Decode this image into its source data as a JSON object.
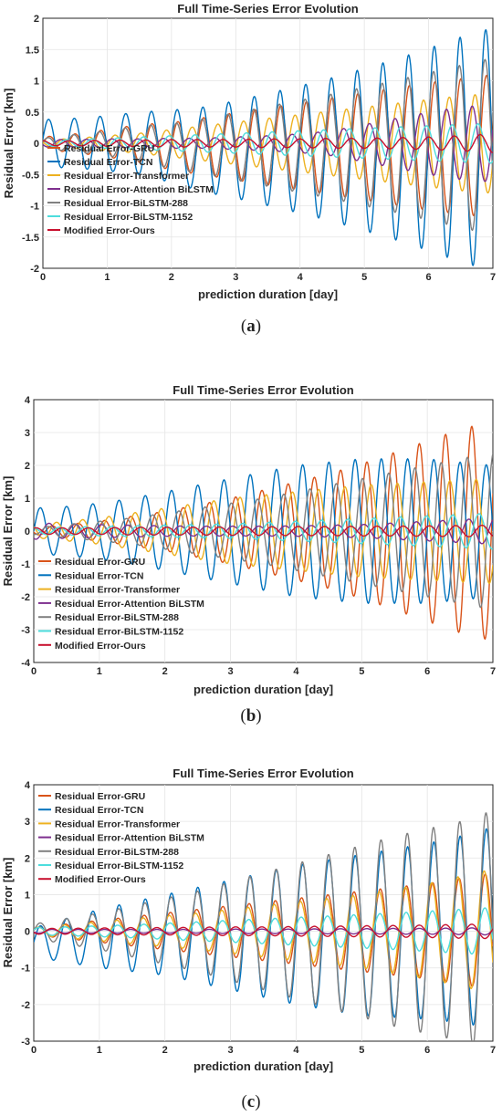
{
  "panels": [
    {
      "caption_open": "(",
      "caption_letter": "a",
      "caption_close": ")"
    },
    {
      "caption_open": "(",
      "caption_letter": "b",
      "caption_close": ")"
    },
    {
      "caption_open": "(",
      "caption_letter": "c",
      "caption_close": ")"
    }
  ],
  "colors": {
    "GRU": "#D95319",
    "TCN": "#0072BD",
    "Transformer": "#EDB120",
    "AttentionBiLSTM": "#7E2F8E",
    "BiLSTM288": "#808080",
    "BiLSTM1152": "#4DDDDD",
    "Ours": "#C8102E"
  },
  "chart_data": [
    {
      "type": "line",
      "title": "Full Time-Series Error Evolution",
      "xlabel": "prediction duration [day]",
      "ylabel": "Residual Error [km]",
      "xlim": [
        0,
        7
      ],
      "ylim": [
        -2,
        2
      ],
      "xticks": [
        0,
        1,
        2,
        3,
        4,
        5,
        6,
        7
      ],
      "yticks": [
        -2,
        -1.5,
        -1,
        -0.5,
        0,
        0.5,
        1,
        1.5,
        2
      ],
      "grid": true,
      "legend_position": "bottom-left",
      "oscillation_period_day": 0.4,
      "x": [
        0,
        0.5,
        1,
        1.5,
        2,
        2.5,
        3,
        3.5,
        4,
        4.5,
        5,
        5.5,
        6,
        6.5,
        7
      ],
      "series": [
        {
          "name": "Residual Error-GRU",
          "color": "#D95319",
          "phase_deg": 0,
          "amplitude": [
            0.1,
            0.15,
            0.22,
            0.3,
            0.38,
            0.46,
            0.54,
            0.62,
            0.7,
            0.78,
            0.86,
            0.94,
            1.02,
            1.08,
            1.15
          ],
          "offset": [
            0,
            0,
            0,
            0,
            -0.05,
            -0.05,
            -0.05,
            -0.05,
            -0.05,
            -0.05,
            -0.05,
            -0.05,
            -0.05,
            -0.05,
            -0.05
          ]
        },
        {
          "name": "Residual Error-TCN",
          "color": "#0072BD",
          "phase_deg": 10,
          "amplitude": [
            0.38,
            0.4,
            0.44,
            0.5,
            0.58,
            0.68,
            0.78,
            0.9,
            1.02,
            1.15,
            1.3,
            1.45,
            1.62,
            1.8,
            1.95
          ],
          "offset": [
            0,
            0,
            0,
            0,
            -0.05,
            -0.1,
            -0.1,
            -0.1,
            -0.1,
            -0.1,
            -0.1,
            -0.1,
            -0.1,
            -0.1,
            -0.1
          ]
        },
        {
          "name": "Residual Error-Transformer",
          "color": "#EDB120",
          "phase_deg": 160,
          "amplitude": [
            0.05,
            0.08,
            0.12,
            0.16,
            0.22,
            0.28,
            0.34,
            0.4,
            0.46,
            0.52,
            0.58,
            0.64,
            0.7,
            0.76,
            0.8
          ],
          "offset": [
            0,
            0,
            0,
            0,
            0,
            0,
            0,
            0,
            0,
            0,
            0,
            0,
            0,
            0,
            0
          ]
        },
        {
          "name": "Residual Error-Attention BiLSTM",
          "color": "#7E2F8E",
          "phase_deg": 200,
          "amplitude": [
            0.06,
            0.06,
            0.07,
            0.07,
            0.08,
            0.08,
            0.1,
            0.12,
            0.15,
            0.2,
            0.3,
            0.4,
            0.5,
            0.58,
            0.62
          ],
          "offset": [
            0,
            0,
            0,
            0,
            0,
            0,
            0,
            0,
            0,
            0,
            0,
            0,
            0,
            0,
            0
          ]
        },
        {
          "name": "Residual Error-BiLSTM-288",
          "color": "#808080",
          "phase_deg": 20,
          "amplitude": [
            0.08,
            0.14,
            0.2,
            0.28,
            0.36,
            0.44,
            0.54,
            0.64,
            0.74,
            0.84,
            0.95,
            1.06,
            1.18,
            1.3,
            1.42
          ],
          "offset": [
            0,
            0,
            0,
            0,
            -0.05,
            -0.05,
            -0.05,
            -0.05,
            -0.05,
            -0.05,
            -0.05,
            -0.05,
            -0.05,
            -0.05,
            -0.05
          ]
        },
        {
          "name": "Residual Error-BiLSTM-1152",
          "color": "#4DDDDD",
          "phase_deg": 120,
          "amplitude": [
            0.05,
            0.06,
            0.08,
            0.1,
            0.12,
            0.14,
            0.16,
            0.18,
            0.2,
            0.22,
            0.24,
            0.26,
            0.28,
            0.3,
            0.32
          ],
          "offset": [
            0,
            0,
            0,
            0,
            0,
            0,
            0,
            0,
            0,
            0,
            0,
            0,
            0,
            0,
            0
          ]
        },
        {
          "name": "Modified Error-Ours",
          "color": "#C8102E",
          "phase_deg": 90,
          "amplitude": [
            0.04,
            0.04,
            0.05,
            0.05,
            0.06,
            0.06,
            0.06,
            0.07,
            0.07,
            0.08,
            0.08,
            0.09,
            0.1,
            0.12,
            0.15
          ],
          "offset": [
            0,
            0,
            0,
            0,
            0,
            0,
            0,
            0,
            0,
            0,
            0,
            0,
            0,
            0,
            0
          ]
        }
      ]
    },
    {
      "type": "line",
      "title": "Full Time-Series Error Evolution",
      "xlabel": "prediction duration [day]",
      "ylabel": "Residual Error [km]",
      "xlim": [
        0,
        7
      ],
      "ylim": [
        -4,
        4
      ],
      "xticks": [
        0,
        1,
        2,
        3,
        4,
        5,
        6,
        7
      ],
      "yticks": [
        -4,
        -3,
        -2,
        -1,
        0,
        1,
        2,
        3,
        4
      ],
      "grid": true,
      "legend_position": "bottom-left",
      "oscillation_period_day": 0.4,
      "x": [
        0,
        0.5,
        1,
        1.5,
        2,
        2.5,
        3,
        3.5,
        4,
        4.5,
        5,
        5.5,
        6,
        6.5,
        7
      ],
      "series": [
        {
          "name": "Residual Error-GRU",
          "color": "#D95319",
          "phase_deg": 200,
          "amplitude": [
            0.1,
            0.2,
            0.3,
            0.45,
            0.6,
            0.8,
            1.0,
            1.25,
            1.5,
            1.75,
            2.05,
            2.4,
            2.75,
            3.1,
            3.35
          ],
          "offset": [
            0,
            0,
            0,
            0,
            0,
            0,
            0,
            0,
            0,
            0,
            0,
            0,
            0,
            0,
            0
          ]
        },
        {
          "name": "Residual Error-TCN",
          "color": "#0072BD",
          "phase_deg": 0,
          "amplitude": [
            0.7,
            0.75,
            0.85,
            1.0,
            1.2,
            1.4,
            1.6,
            1.8,
            2.0,
            2.1,
            2.2,
            2.2,
            2.2,
            2.1,
            2.0
          ],
          "offset": [
            0,
            0,
            0,
            0,
            0,
            0,
            0,
            0,
            0,
            0,
            0,
            0,
            0,
            0,
            0
          ]
        },
        {
          "name": "Residual Error-Transformer",
          "color": "#EDB120",
          "phase_deg": 140,
          "amplitude": [
            0.2,
            0.3,
            0.4,
            0.55,
            0.7,
            0.85,
            1.0,
            1.1,
            1.2,
            1.3,
            1.4,
            1.45,
            1.5,
            1.55,
            1.6
          ],
          "offset": [
            0,
            0,
            0,
            0,
            0,
            0,
            0,
            0,
            0,
            0,
            0,
            0,
            0,
            0,
            0
          ]
        },
        {
          "name": "Residual Error-Attention BiLSTM",
          "color": "#7E2F8E",
          "phase_deg": 240,
          "amplitude": [
            0.25,
            0.22,
            0.2,
            0.18,
            0.16,
            0.15,
            0.15,
            0.15,
            0.16,
            0.18,
            0.2,
            0.25,
            0.3,
            0.35,
            0.4
          ],
          "offset": [
            0,
            0,
            0,
            0,
            0,
            0,
            0,
            0,
            0,
            0,
            0,
            0,
            0,
            0,
            0
          ]
        },
        {
          "name": "Residual Error-BiLSTM-288",
          "color": "#808080",
          "phase_deg": 260,
          "amplitude": [
            0.1,
            0.2,
            0.3,
            0.4,
            0.55,
            0.7,
            0.85,
            1.0,
            1.2,
            1.4,
            1.6,
            1.8,
            2.0,
            2.2,
            2.4
          ],
          "offset": [
            0,
            0,
            0,
            0,
            0,
            0,
            0,
            0,
            0,
            0,
            0,
            0,
            0,
            0,
            0
          ]
        },
        {
          "name": "Residual Error-BiLSTM-1152",
          "color": "#4DDDDD",
          "phase_deg": 100,
          "amplitude": [
            0.1,
            0.12,
            0.14,
            0.16,
            0.18,
            0.2,
            0.22,
            0.26,
            0.3,
            0.34,
            0.38,
            0.42,
            0.46,
            0.5,
            0.55
          ],
          "offset": [
            0,
            0,
            0,
            0,
            0,
            0,
            0,
            0,
            0,
            0,
            0,
            0,
            0,
            0,
            0
          ]
        },
        {
          "name": "Modified Error-Ours",
          "color": "#C8102E",
          "phase_deg": 60,
          "amplitude": [
            0.1,
            0.1,
            0.1,
            0.12,
            0.12,
            0.12,
            0.13,
            0.13,
            0.14,
            0.14,
            0.15,
            0.15,
            0.16,
            0.17,
            0.18
          ],
          "offset": [
            0,
            0,
            0,
            0,
            0,
            0,
            0,
            0,
            0,
            0,
            0,
            0,
            0,
            0,
            0
          ]
        }
      ]
    },
    {
      "type": "line",
      "title": "Full Time-Series Error Evolution",
      "xlabel": "prediction duration [day]",
      "ylabel": "Residual Error [km]",
      "xlim": [
        0,
        7
      ],
      "ylim": [
        -3,
        4
      ],
      "xticks": [
        0,
        1,
        2,
        3,
        4,
        5,
        6,
        7
      ],
      "yticks": [
        -3,
        -2,
        -1,
        0,
        1,
        2,
        3,
        4
      ],
      "grid": true,
      "legend_position": "top-left",
      "oscillation_period_day": 0.4,
      "x": [
        0,
        0.5,
        1,
        1.5,
        2,
        2.5,
        3,
        3.5,
        4,
        4.5,
        5,
        5.5,
        6,
        6.5,
        7
      ],
      "series": [
        {
          "name": "Residual Error-GRU",
          "color": "#D95319",
          "phase_deg": 15,
          "amplitude": [
            0.1,
            0.2,
            0.3,
            0.4,
            0.5,
            0.6,
            0.7,
            0.8,
            0.9,
            1.0,
            1.1,
            1.2,
            1.3,
            1.45,
            1.6
          ],
          "offset": [
            0,
            0,
            0,
            0,
            0,
            0,
            0,
            0,
            0,
            0,
            0,
            0,
            0,
            0,
            0
          ]
        },
        {
          "name": "Residual Error-TCN",
          "color": "#0072BD",
          "phase_deg": 0,
          "amplitude": [
            0.4,
            0.6,
            0.8,
            0.95,
            1.1,
            1.3,
            1.5,
            1.7,
            1.9,
            2.05,
            2.2,
            2.3,
            2.4,
            2.55,
            2.75
          ],
          "offset": [
            -0.3,
            -0.25,
            -0.2,
            -0.15,
            -0.1,
            -0.1,
            -0.1,
            -0.1,
            -0.1,
            -0.1,
            -0.1,
            -0.05,
            0,
            0.05,
            0.1
          ]
        },
        {
          "name": "Residual Error-Transformer",
          "color": "#EDB120",
          "phase_deg": 30,
          "amplitude": [
            0.1,
            0.18,
            0.26,
            0.34,
            0.42,
            0.5,
            0.6,
            0.7,
            0.8,
            0.9,
            1.0,
            1.15,
            1.3,
            1.5,
            1.7
          ],
          "offset": [
            0,
            0,
            0,
            0,
            0,
            0,
            0,
            0,
            0,
            0,
            0,
            0,
            0,
            0,
            0
          ]
        },
        {
          "name": "Residual Error-Attention BiLSTM",
          "color": "#7E2F8E",
          "phase_deg": 200,
          "amplitude": [
            0.05,
            0.05,
            0.05,
            0.05,
            0.05,
            0.05,
            0.06,
            0.06,
            0.06,
            0.07,
            0.07,
            0.08,
            0.08,
            0.09,
            0.1
          ],
          "offset": [
            0,
            0,
            0,
            0,
            0,
            0,
            0,
            0,
            0,
            0,
            0,
            0,
            0,
            0,
            0
          ]
        },
        {
          "name": "Residual Error-BiLSTM-288",
          "color": "#808080",
          "phase_deg": 5,
          "amplitude": [
            0.2,
            0.35,
            0.5,
            0.7,
            0.9,
            1.1,
            1.35,
            1.6,
            1.85,
            2.1,
            2.35,
            2.6,
            2.8,
            3.0,
            3.3
          ],
          "offset": [
            0,
            0,
            0,
            0,
            0,
            0,
            0,
            0,
            0,
            0,
            0,
            0,
            0,
            0,
            0
          ]
        },
        {
          "name": "Residual Error-BiLSTM-1152",
          "color": "#4DDDDD",
          "phase_deg": 20,
          "amplitude": [
            0.1,
            0.12,
            0.15,
            0.18,
            0.22,
            0.26,
            0.3,
            0.34,
            0.38,
            0.42,
            0.46,
            0.5,
            0.55,
            0.6,
            0.65
          ],
          "offset": [
            0,
            0,
            0,
            0,
            0,
            0,
            0,
            0,
            0,
            0,
            0,
            0,
            0,
            0,
            0
          ]
        },
        {
          "name": "Modified Error-Ours",
          "color": "#C8102E",
          "phase_deg": 200,
          "amplitude": [
            0.08,
            0.08,
            0.09,
            0.1,
            0.1,
            0.11,
            0.12,
            0.12,
            0.13,
            0.14,
            0.15,
            0.16,
            0.17,
            0.19,
            0.2
          ],
          "offset": [
            0,
            0,
            0,
            0,
            0,
            0,
            0,
            0,
            0,
            0,
            0,
            0,
            0,
            0,
            0
          ]
        }
      ]
    }
  ]
}
